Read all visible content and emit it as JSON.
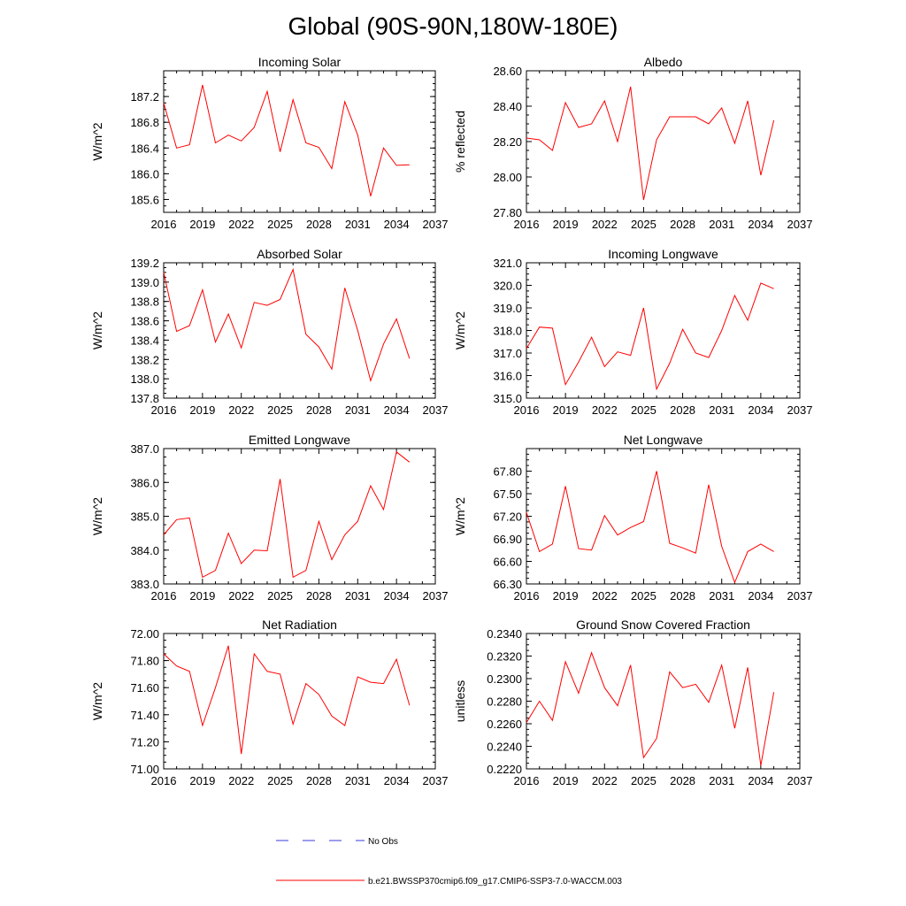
{
  "title": "Global (90S-90N,180W-180E)",
  "colors": {
    "model": "#ff0000",
    "obs": "#3a3adc",
    "axis": "#000000"
  },
  "legend": {
    "obs_label": "No Obs",
    "model_label": "b.e21.BWSSP370cmip6.f09_g17.CMIP6-SSP3-7.0-WACCM.003"
  },
  "chart_data": [
    {
      "type": "line",
      "title": "Incoming Solar",
      "ylabel": "W/m^2",
      "xlim": [
        2016,
        2037
      ],
      "xticks": [
        "2016",
        "2019",
        "2022",
        "2025",
        "2028",
        "2031",
        "2034",
        "2037"
      ],
      "ylim": [
        185.4,
        187.6
      ],
      "yticks": [
        "185.6",
        "186.0",
        "186.4",
        "186.8",
        "187.2"
      ],
      "x": [
        2016,
        2017,
        2018,
        2019,
        2020,
        2021,
        2022,
        2023,
        2024,
        2025,
        2026,
        2027,
        2028,
        2029,
        2030,
        2031,
        2032,
        2033,
        2034,
        2035
      ],
      "values": [
        187.1,
        186.4,
        186.45,
        187.38,
        186.48,
        186.6,
        186.51,
        186.72,
        187.28,
        186.34,
        187.15,
        186.48,
        186.41,
        186.08,
        187.12,
        186.6,
        185.65,
        186.4,
        186.13,
        186.14
      ]
    },
    {
      "type": "line",
      "title": "Albedo",
      "ylabel": "% reflected",
      "xlim": [
        2016,
        2037
      ],
      "xticks": [
        "2016",
        "2019",
        "2022",
        "2025",
        "2028",
        "2031",
        "2034",
        "2037"
      ],
      "ylim": [
        27.8,
        28.6
      ],
      "yticks": [
        "27.80",
        "28.00",
        "28.20",
        "28.40",
        "28.60"
      ],
      "x": [
        2016,
        2017,
        2018,
        2019,
        2020,
        2021,
        2022,
        2023,
        2024,
        2025,
        2026,
        2027,
        2028,
        2029,
        2030,
        2031,
        2032,
        2033,
        2034,
        2035
      ],
      "values": [
        28.22,
        28.21,
        28.15,
        28.42,
        28.28,
        28.3,
        28.43,
        28.2,
        28.51,
        27.87,
        28.21,
        28.34,
        28.34,
        28.34,
        28.3,
        28.39,
        28.19,
        28.43,
        28.01,
        28.32
      ]
    },
    {
      "type": "line",
      "title": "Absorbed Solar",
      "ylabel": "W/m^2",
      "xlim": [
        2016,
        2037
      ],
      "xticks": [
        "2016",
        "2019",
        "2022",
        "2025",
        "2028",
        "2031",
        "2034",
        "2037"
      ],
      "ylim": [
        137.8,
        139.2
      ],
      "yticks": [
        "137.8",
        "138.0",
        "138.2",
        "138.4",
        "138.6",
        "138.8",
        "139.0",
        "139.2"
      ],
      "x": [
        2016,
        2017,
        2018,
        2019,
        2020,
        2021,
        2022,
        2023,
        2024,
        2025,
        2026,
        2027,
        2028,
        2029,
        2030,
        2031,
        2032,
        2033,
        2034,
        2035
      ],
      "values": [
        139.1,
        138.49,
        138.55,
        138.92,
        138.38,
        138.67,
        138.32,
        138.79,
        138.76,
        138.82,
        139.13,
        138.46,
        138.33,
        138.1,
        138.94,
        138.5,
        137.98,
        138.36,
        138.62,
        138.21
      ]
    },
    {
      "type": "line",
      "title": "Incoming Longwave",
      "ylabel": "W/m^2",
      "xlim": [
        2016,
        2037
      ],
      "xticks": [
        "2016",
        "2019",
        "2022",
        "2025",
        "2028",
        "2031",
        "2034",
        "2037"
      ],
      "ylim": [
        315.0,
        321.0
      ],
      "yticks": [
        "315.0",
        "316.0",
        "317.0",
        "318.0",
        "319.0",
        "320.0",
        "321.0"
      ],
      "x": [
        2016,
        2017,
        2018,
        2019,
        2020,
        2021,
        2022,
        2023,
        2024,
        2025,
        2026,
        2027,
        2028,
        2029,
        2030,
        2031,
        2032,
        2033,
        2034,
        2035
      ],
      "values": [
        317.2,
        318.15,
        318.1,
        315.6,
        316.6,
        317.7,
        316.4,
        317.05,
        316.9,
        319.0,
        315.4,
        316.55,
        318.05,
        317.0,
        316.8,
        318.0,
        319.55,
        318.45,
        320.1,
        319.85
      ]
    },
    {
      "type": "line",
      "title": "Emitted Longwave",
      "ylabel": "W/m^2",
      "xlim": [
        2016,
        2037
      ],
      "xticks": [
        "2016",
        "2019",
        "2022",
        "2025",
        "2028",
        "2031",
        "2034",
        "2037"
      ],
      "ylim": [
        383.0,
        387.0
      ],
      "yticks": [
        "383.0",
        "384.0",
        "385.0",
        "386.0",
        "387.0"
      ],
      "x": [
        2016,
        2017,
        2018,
        2019,
        2020,
        2021,
        2022,
        2023,
        2024,
        2025,
        2026,
        2027,
        2028,
        2029,
        2030,
        2031,
        2032,
        2033,
        2034,
        2035
      ],
      "values": [
        384.45,
        384.9,
        384.95,
        383.2,
        383.4,
        384.5,
        383.6,
        384.0,
        383.98,
        386.1,
        383.2,
        383.4,
        384.85,
        383.72,
        384.45,
        384.85,
        385.9,
        385.2,
        386.9,
        386.6
      ]
    },
    {
      "type": "line",
      "title": "Net Longwave",
      "ylabel": "W/m^2",
      "xlim": [
        2016,
        2037
      ],
      "xticks": [
        "2016",
        "2019",
        "2022",
        "2025",
        "2028",
        "2031",
        "2034",
        "2037"
      ],
      "ylim": [
        66.3,
        68.1
      ],
      "yticks": [
        "66.30",
        "66.60",
        "66.90",
        "67.20",
        "67.50",
        "67.80"
      ],
      "x": [
        2016,
        2017,
        2018,
        2019,
        2020,
        2021,
        2022,
        2023,
        2024,
        2025,
        2026,
        2027,
        2028,
        2029,
        2030,
        2031,
        2032,
        2033,
        2034,
        2035
      ],
      "values": [
        67.25,
        66.73,
        66.83,
        67.6,
        66.77,
        66.75,
        67.21,
        66.95,
        67.05,
        67.13,
        67.8,
        66.84,
        66.78,
        66.71,
        67.62,
        66.8,
        66.32,
        66.73,
        66.83,
        66.73
      ]
    },
    {
      "type": "line",
      "title": "Net Radiation",
      "ylabel": "W/m^2",
      "xlim": [
        2016,
        2037
      ],
      "xticks": [
        "2016",
        "2019",
        "2022",
        "2025",
        "2028",
        "2031",
        "2034",
        "2037"
      ],
      "ylim": [
        71.0,
        72.0
      ],
      "yticks": [
        "71.00",
        "71.20",
        "71.40",
        "71.60",
        "71.80",
        "72.00"
      ],
      "x": [
        2016,
        2017,
        2018,
        2019,
        2020,
        2021,
        2022,
        2023,
        2024,
        2025,
        2026,
        2027,
        2028,
        2029,
        2030,
        2031,
        2032,
        2033,
        2034,
        2035
      ],
      "values": [
        71.85,
        71.76,
        71.72,
        71.32,
        71.6,
        71.91,
        71.11,
        71.85,
        71.72,
        71.7,
        71.33,
        71.63,
        71.55,
        71.39,
        71.32,
        71.68,
        71.64,
        71.63,
        71.81,
        71.47
      ]
    },
    {
      "type": "line",
      "title": "Ground Snow Covered Fraction",
      "ylabel": "unitless",
      "xlim": [
        2016,
        2037
      ],
      "xticks": [
        "2016",
        "2019",
        "2022",
        "2025",
        "2028",
        "2031",
        "2034",
        "2037"
      ],
      "ylim": [
        0.222,
        0.234
      ],
      "yticks": [
        "0.2220",
        "0.2240",
        "0.2260",
        "0.2280",
        "0.2300",
        "0.2320",
        "0.2340"
      ],
      "x": [
        2016,
        2017,
        2018,
        2019,
        2020,
        2021,
        2022,
        2023,
        2024,
        2025,
        2026,
        2027,
        2028,
        2029,
        2030,
        2031,
        2032,
        2033,
        2034,
        2035
      ],
      "values": [
        0.2261,
        0.228,
        0.2263,
        0.2315,
        0.2287,
        0.2323,
        0.2292,
        0.2276,
        0.2312,
        0.223,
        0.2247,
        0.2306,
        0.2292,
        0.2295,
        0.2279,
        0.2312,
        0.2256,
        0.231,
        0.2223,
        0.2288
      ]
    }
  ]
}
